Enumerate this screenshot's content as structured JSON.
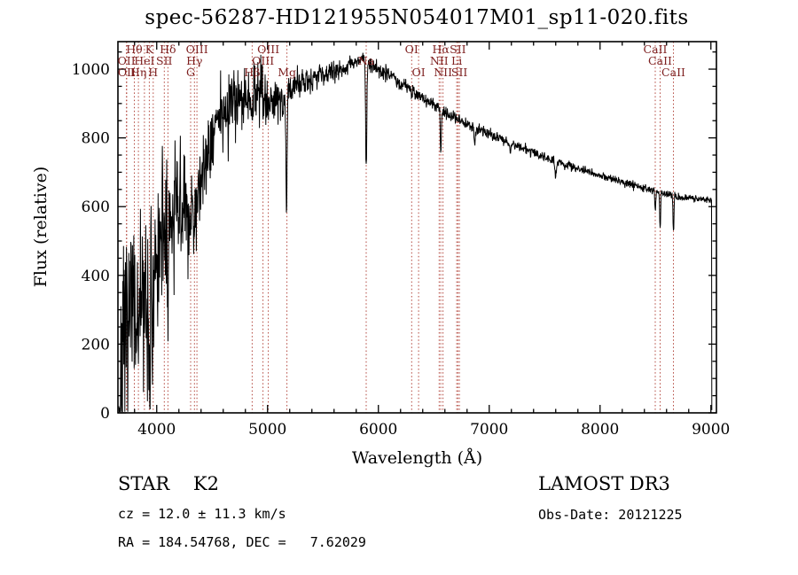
{
  "title": "spec-56287-HD121955N054017M01_sp11-020.fits",
  "axes": {
    "xlabel": "Wavelength (Å)",
    "ylabel": "Flux (relative)"
  },
  "footer": {
    "classification": "STAR    K2",
    "cz_line": "cz = 12.0 ± 11.3 km/s",
    "radec_line": "RA = 184.54768, DEC =   7.62029",
    "survey": "LAMOST DR3",
    "obs_date_line": "Obs-Date: 20121225"
  },
  "colors": {
    "background": "#ffffff",
    "trace": "#000000",
    "frame": "#000000",
    "marker_line": "#b2463c",
    "marker_label": "#7d1f1f"
  },
  "chart_data": {
    "type": "line",
    "title": "spec-56287-HD121955N054017M01_sp11-020.fits",
    "xlabel": "Wavelength (Å)",
    "ylabel": "Flux (relative)",
    "xlim": [
      3650,
      9050
    ],
    "ylim": [
      0,
      1080
    ],
    "xticks": [
      4000,
      5000,
      6000,
      7000,
      8000,
      9000
    ],
    "yticks": [
      0,
      200,
      400,
      600,
      800,
      1000
    ],
    "x_minor_step": 200,
    "y_minor_step": 50,
    "grid": false,
    "sample_step": 3,
    "noise_seed": 7,
    "continuum": [
      [
        3660,
        80
      ],
      [
        3700,
        160
      ],
      [
        3740,
        260
      ],
      [
        3780,
        300
      ],
      [
        3820,
        280
      ],
      [
        3860,
        330
      ],
      [
        3900,
        300
      ],
      [
        3950,
        340
      ],
      [
        4000,
        430
      ],
      [
        4050,
        520
      ],
      [
        4120,
        540
      ],
      [
        4180,
        600
      ],
      [
        4240,
        610
      ],
      [
        4300,
        600
      ],
      [
        4360,
        660
      ],
      [
        4420,
        710
      ],
      [
        4480,
        790
      ],
      [
        4540,
        850
      ],
      [
        4600,
        900
      ],
      [
        4660,
        915
      ],
      [
        4720,
        930
      ],
      [
        4780,
        915
      ],
      [
        4840,
        915
      ],
      [
        4900,
        940
      ],
      [
        4960,
        925
      ],
      [
        5020,
        910
      ],
      [
        5080,
        930
      ],
      [
        5140,
        910
      ],
      [
        5200,
        940
      ],
      [
        5300,
        960
      ],
      [
        5400,
        975
      ],
      [
        5500,
        985
      ],
      [
        5600,
        995
      ],
      [
        5700,
        1005
      ],
      [
        5800,
        1020
      ],
      [
        5860,
        1030
      ],
      [
        5920,
        1015
      ],
      [
        6000,
        1000
      ],
      [
        6100,
        985
      ],
      [
        6200,
        960
      ],
      [
        6300,
        938
      ],
      [
        6400,
        916
      ],
      [
        6500,
        896
      ],
      [
        6600,
        876
      ],
      [
        6700,
        857
      ],
      [
        6800,
        842
      ],
      [
        6900,
        826
      ],
      [
        7000,
        812
      ],
      [
        7100,
        797
      ],
      [
        7200,
        783
      ],
      [
        7300,
        770
      ],
      [
        7400,
        757
      ],
      [
        7500,
        745
      ],
      [
        7600,
        733
      ],
      [
        7700,
        721
      ],
      [
        7800,
        711
      ],
      [
        7900,
        701
      ],
      [
        8000,
        691
      ],
      [
        8100,
        681
      ],
      [
        8200,
        671
      ],
      [
        8300,
        661
      ],
      [
        8400,
        653
      ],
      [
        8500,
        645
      ],
      [
        8600,
        637
      ],
      [
        8700,
        629
      ],
      [
        8800,
        626
      ],
      [
        8900,
        622
      ],
      [
        9000,
        620
      ]
    ],
    "absorption_features": [
      {
        "center": 3933,
        "depth": 170,
        "sigma": 8
      },
      {
        "center": 3968,
        "depth": 150,
        "sigma": 8
      },
      {
        "center": 4101,
        "depth": 110,
        "sigma": 6
      },
      {
        "center": 4226,
        "depth": 90,
        "sigma": 5
      },
      {
        "center": 4306,
        "depth": 95,
        "sigma": 9
      },
      {
        "center": 4340,
        "depth": 80,
        "sigma": 5
      },
      {
        "center": 4861,
        "depth": 110,
        "sigma": 5
      },
      {
        "center": 5170,
        "depth": 330,
        "sigma": 5
      },
      {
        "center": 5890,
        "depth": 320,
        "sigma": 5
      },
      {
        "center": 6563,
        "depth": 120,
        "sigma": 5
      },
      {
        "center": 6870,
        "depth": 55,
        "sigma": 6
      },
      {
        "center": 7190,
        "depth": 35,
        "sigma": 5
      },
      {
        "center": 7600,
        "depth": 45,
        "sigma": 6
      },
      {
        "center": 8498,
        "depth": 70,
        "sigma": 4
      },
      {
        "center": 8542,
        "depth": 110,
        "sigma": 4
      },
      {
        "center": 8662,
        "depth": 110,
        "sigma": 4
      }
    ],
    "noise_profile": [
      [
        3660,
        140
      ],
      [
        3800,
        135
      ],
      [
        3950,
        120
      ],
      [
        4100,
        105
      ],
      [
        4250,
        80
      ],
      [
        4400,
        65
      ],
      [
        4600,
        52
      ],
      [
        4800,
        46
      ],
      [
        5000,
        38
      ],
      [
        5200,
        26
      ],
      [
        5400,
        18
      ],
      [
        5700,
        13
      ],
      [
        6000,
        11
      ],
      [
        6400,
        10
      ],
      [
        6800,
        9
      ],
      [
        7200,
        8
      ],
      [
        7600,
        7
      ],
      [
        8000,
        6
      ],
      [
        8600,
        6
      ],
      [
        9000,
        5
      ]
    ],
    "edge_drop_wavelength": 9008,
    "spectral_lines": [
      {
        "wavelength": 3727,
        "label": "OII",
        "row": 2
      },
      {
        "wavelength": 3729,
        "label": "OII",
        "row": 3
      },
      {
        "wavelength": 3798,
        "label": "Hθ",
        "row": 1
      },
      {
        "wavelength": 3835,
        "label": "Hη",
        "row": 3
      },
      {
        "wavelength": 3889,
        "label": "HeI",
        "row": 2
      },
      {
        "wavelength": 3933,
        "label": "K",
        "row": 1
      },
      {
        "wavelength": 3968,
        "label": "H",
        "row": 3
      },
      {
        "wavelength": 4068,
        "label": "SII",
        "row": 2
      },
      {
        "wavelength": 4101,
        "label": "Hδ",
        "row": 1
      },
      {
        "wavelength": 4306,
        "label": "G",
        "row": 3
      },
      {
        "wavelength": 4340,
        "label": "Hγ",
        "row": 2
      },
      {
        "wavelength": 4363,
        "label": "OIII",
        "row": 1
      },
      {
        "wavelength": 4861,
        "label": "Hβ",
        "row": 3
      },
      {
        "wavelength": 4959,
        "label": "OIII",
        "row": 2
      },
      {
        "wavelength": 5007,
        "label": "OIII",
        "row": 1
      },
      {
        "wavelength": 5175,
        "label": "Mg",
        "row": 3
      },
      {
        "wavelength": 5890,
        "label": "Na",
        "row": 2
      },
      {
        "wavelength": 6300,
        "label": "OI",
        "row": 1
      },
      {
        "wavelength": 6363,
        "label": "OI",
        "row": 3
      },
      {
        "wavelength": 6548,
        "label": "NII",
        "row": 2
      },
      {
        "wavelength": 6563,
        "label": "Hα",
        "row": 1
      },
      {
        "wavelength": 6583,
        "label": "NII",
        "row": 3
      },
      {
        "wavelength": 6707,
        "label": "Li",
        "row": 2
      },
      {
        "wavelength": 6717,
        "label": "SII",
        "row": 1
      },
      {
        "wavelength": 6731,
        "label": "SII",
        "row": 3
      },
      {
        "wavelength": 8498,
        "label": "CaII",
        "row": 1
      },
      {
        "wavelength": 8542,
        "label": "CaII",
        "row": 2
      },
      {
        "wavelength": 8662,
        "label": "CaII",
        "row": 3
      }
    ]
  }
}
